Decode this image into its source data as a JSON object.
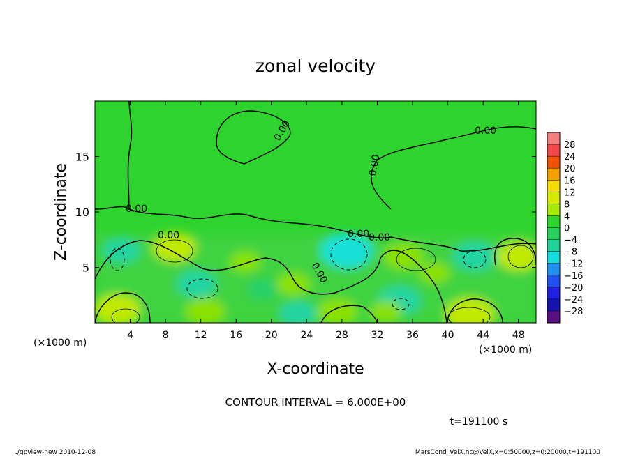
{
  "chart_data": {
    "type": "heatmap",
    "title": "zonal velocity",
    "xlabel": "X-coordinate",
    "ylabel": "Z-coordinate",
    "x_unit": "(×1000 m)",
    "y_unit": "(×1000 m)",
    "xlim": [
      0,
      50
    ],
    "ylim": [
      0,
      20
    ],
    "x_ticks": [
      4,
      8,
      12,
      16,
      20,
      24,
      28,
      32,
      36,
      40,
      44,
      48
    ],
    "y_ticks": [
      5,
      10,
      15
    ],
    "contour_interval_text": "CONTOUR INTERVAL = 6.000E+00",
    "contour_labels": [
      "0.00",
      "0.00",
      "0.00",
      "0.00",
      "0.00",
      "0.00",
      "0.00",
      "0.00"
    ],
    "time_text": "t=191100 s",
    "colorbar": {
      "levels": [
        28,
        24,
        20,
        16,
        12,
        8,
        4,
        0,
        -4,
        -8,
        -12,
        -16,
        -20,
        -24,
        -28
      ],
      "colors": [
        "#f47f7f",
        "#f24848",
        "#f05000",
        "#f6a000",
        "#f6dc00",
        "#d6ea00",
        "#a6ea00",
        "#2ed42e",
        "#24d05a",
        "#20d29a",
        "#18dcdc",
        "#2090f0",
        "#2050f0",
        "#2020e0",
        "#1414b0",
        "#5a1080"
      ]
    },
    "positive_blobs": [
      {
        "x": 9.0,
        "z": 6.8,
        "value": 8
      },
      {
        "x": 2.5,
        "z": 1.2,
        "value": 9
      },
      {
        "x": 12.5,
        "z": 1.0,
        "value": 7
      },
      {
        "x": 17.0,
        "z": 5.5,
        "value": 4
      },
      {
        "x": 22.5,
        "z": 3.5,
        "value": 5
      },
      {
        "x": 27.5,
        "z": 1.0,
        "value": 7
      },
      {
        "x": 35.0,
        "z": 6.0,
        "value": 7
      },
      {
        "x": 38.5,
        "z": 4.5,
        "value": 4
      },
      {
        "x": 42.5,
        "z": 0.8,
        "value": 10
      },
      {
        "x": 48.0,
        "z": 6.0,
        "value": 8
      },
      {
        "x": 33.0,
        "z": 1.0,
        "value": 4
      }
    ],
    "negative_blobs": [
      {
        "x": 3.0,
        "z": 6.5,
        "value": -6
      },
      {
        "x": 11.5,
        "z": 3.5,
        "value": -7
      },
      {
        "x": 28.5,
        "z": 6.5,
        "value": -11
      },
      {
        "x": 23.0,
        "z": 0.8,
        "value": -6
      },
      {
        "x": 34.5,
        "z": 2.0,
        "value": -8
      },
      {
        "x": 43.0,
        "z": 6.0,
        "value": -8
      },
      {
        "x": 19.0,
        "z": 3.0,
        "value": -4
      }
    ]
  },
  "footer": {
    "left": "./gpview-new  2010-12-08",
    "right": "MarsCond_VelX.nc@VelX,x=0:50000,z=0:20000,t=191100"
  }
}
